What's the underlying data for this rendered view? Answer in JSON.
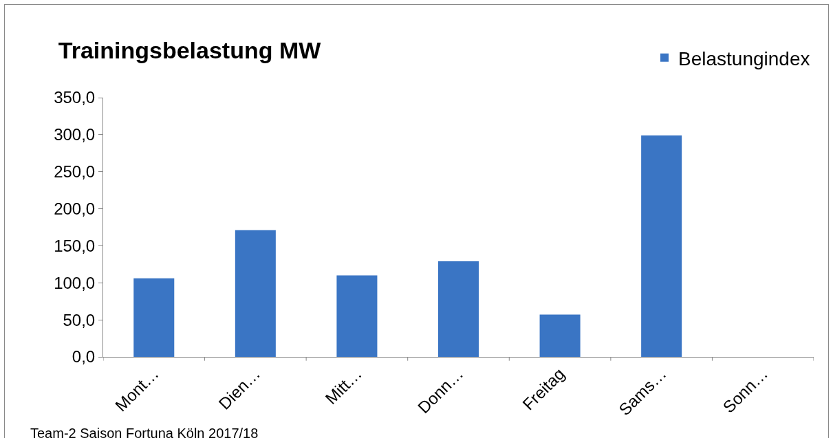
{
  "chart_data": {
    "type": "bar",
    "title": "Trainingsbelastung MW",
    "categories": [
      "Mont…",
      "Dien…",
      "Mitt…",
      "Donn…",
      "Freitag",
      "Sams…",
      "Sonn…"
    ],
    "series": [
      {
        "name": "Belastungindex",
        "color": "#3a75c4",
        "values": [
          106,
          171,
          110,
          129,
          57,
          299,
          0
        ]
      }
    ],
    "ylim": [
      0,
      350
    ],
    "yticks": [
      {
        "value": 0,
        "label": "0,0"
      },
      {
        "value": 50,
        "label": "50,0"
      },
      {
        "value": 100,
        "label": "100,0"
      },
      {
        "value": 150,
        "label": "150,0"
      },
      {
        "value": 200,
        "label": "200,0"
      },
      {
        "value": 250,
        "label": "250,0"
      },
      {
        "value": 300,
        "label": "300,0"
      },
      {
        "value": 350,
        "label": "350,0"
      }
    ],
    "grid": false,
    "legend": "top right",
    "annotations": [
      "Team-2 Saison Fortuna Köln 2017/18"
    ]
  }
}
